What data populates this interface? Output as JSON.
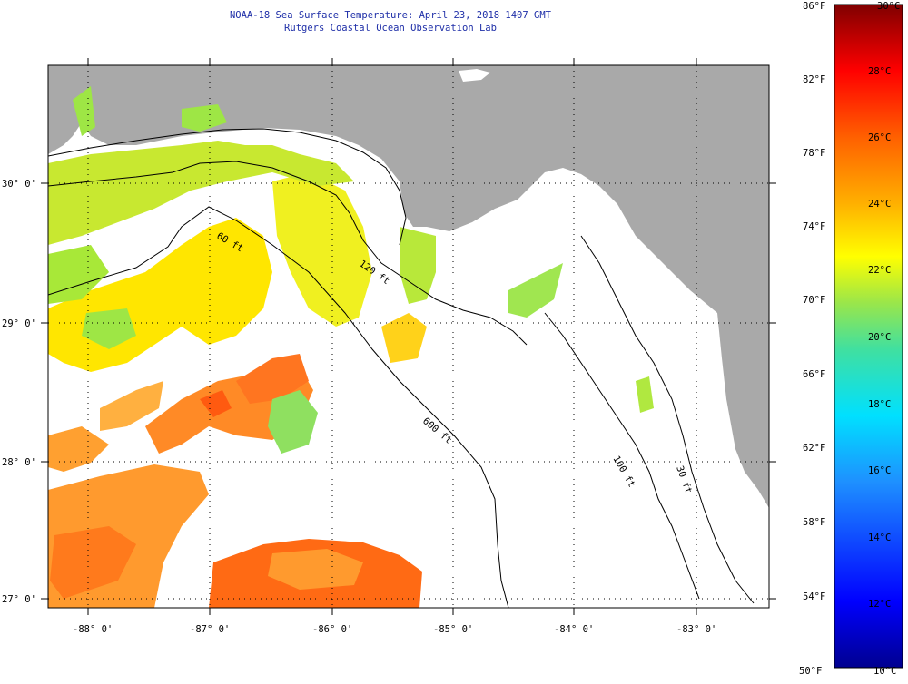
{
  "title": "NOAA-18 Sea Surface Temperature:  April 23, 2018 1407 GMT",
  "subtitle": "Rutgers Coastal Ocean Observation Lab",
  "map": {
    "lat_labels": [
      "30° 0'",
      "29° 0'",
      "28° 0'",
      "27° 0'"
    ],
    "lon_labels": [
      "-88° 0'",
      "-87° 0'",
      "-86° 0'",
      "-85° 0'",
      "-84° 0'",
      "-83° 0'"
    ],
    "contours": [
      "60 ft",
      "120 ft",
      "600 ft",
      "100 ft",
      "30 ft"
    ],
    "colors": {
      "land": "#a9a9a9",
      "no_data": "#ffffff"
    }
  },
  "colorbar": {
    "fahrenheit_labels": [
      "86°F",
      "82°F",
      "78°F",
      "74°F",
      "70°F",
      "66°F",
      "62°F",
      "58°F",
      "54°F",
      "50°F"
    ],
    "celsius_labels": [
      "30°C",
      "28°C",
      "26°C",
      "24°C",
      "22°C",
      "20°C",
      "18°C",
      "16°C",
      "14°C",
      "12°C",
      "10°C"
    ]
  }
}
